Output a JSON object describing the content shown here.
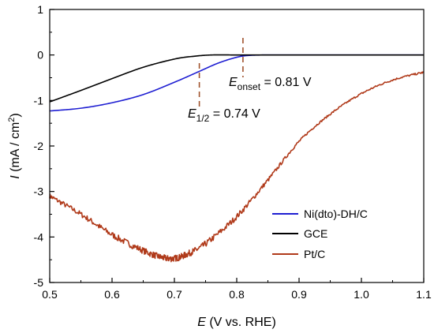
{
  "chart_data": {
    "type": "line",
    "title": "",
    "xlabel": {
      "symbol": "E",
      "rest": " (V vs. RHE)"
    },
    "ylabel": {
      "symbol": "I",
      "rest": " (mA / cm",
      "sup": "2",
      "close": ")"
    },
    "xlim": [
      0.5,
      1.1
    ],
    "ylim": [
      -5,
      1
    ],
    "x_ticks": [
      0.5,
      0.6,
      0.7,
      0.8,
      0.9,
      1.0,
      1.1
    ],
    "x_tick_labels": [
      "0.5",
      "0.6",
      "0.7",
      "0.8",
      "0.9",
      "1.0",
      "1.1"
    ],
    "y_ticks": [
      1,
      0,
      -1,
      -2,
      -3,
      -4,
      -5
    ],
    "y_tick_labels": [
      "1",
      "0",
      "-1",
      "-2",
      "-3",
      "-4",
      "-5"
    ],
    "grid": false,
    "legend_position": "bottom-right",
    "series": [
      {
        "name": "Ni(dto)-DH/C",
        "color": "#1f1fd2",
        "x": [
          0.5,
          0.55,
          0.6,
          0.65,
          0.7,
          0.74,
          0.77,
          0.8,
          0.82,
          0.85,
          0.9,
          1.0,
          1.1
        ],
        "y": [
          -1.23,
          -1.17,
          -1.05,
          -0.87,
          -0.6,
          -0.36,
          -0.18,
          -0.05,
          -0.01,
          0.0,
          0.0,
          0.0,
          0.0
        ]
      },
      {
        "name": "GCE",
        "color": "#000000",
        "x": [
          0.5,
          0.55,
          0.6,
          0.65,
          0.7,
          0.73,
          0.76,
          0.8,
          0.85,
          0.9,
          1.0,
          1.1
        ],
        "y": [
          -1.03,
          -0.78,
          -0.52,
          -0.27,
          -0.09,
          -0.03,
          0.0,
          0.0,
          0.0,
          0.0,
          0.0,
          0.0
        ]
      },
      {
        "name": "Pt/C",
        "color": "#b03a1a",
        "x": [
          0.5,
          0.55,
          0.6,
          0.65,
          0.68,
          0.7,
          0.72,
          0.75,
          0.8,
          0.85,
          0.9,
          0.95,
          1.0,
          1.05,
          1.1
        ],
        "y": [
          -3.1,
          -3.5,
          -3.95,
          -4.3,
          -4.45,
          -4.47,
          -4.38,
          -4.15,
          -3.55,
          -2.75,
          -1.9,
          -1.3,
          -0.85,
          -0.55,
          -0.38
        ]
      }
    ],
    "annotations": [
      {
        "symbol": "E",
        "sub": "onset",
        "value": " = 0.81 V",
        "x_value": 0.81
      },
      {
        "symbol": "E",
        "sub": "1/2",
        "value": " = 0.74 V",
        "x_value": 0.74
      }
    ],
    "marker_color": "#a0522d"
  }
}
